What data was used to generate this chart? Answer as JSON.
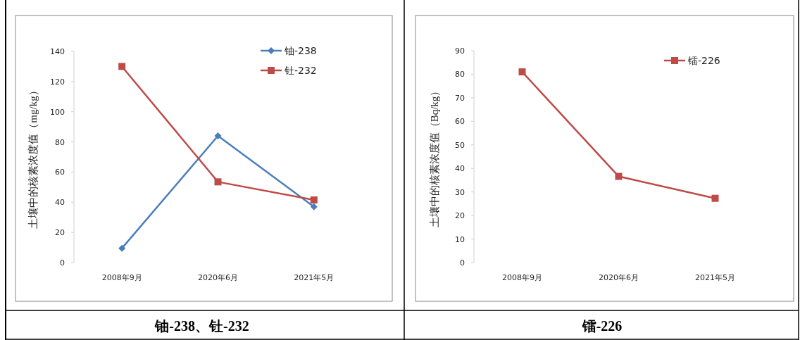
{
  "chart_data": [
    {
      "type": "line",
      "title": "铀-238、钍-232",
      "ylabel": "土壤中的核素浓度值（mg/kg）",
      "categories": [
        "2008年9月",
        "2020年6月",
        "2021年5月"
      ],
      "series": [
        {
          "name": "铀-238",
          "color": "#4a7ebb",
          "marker": "diamond",
          "values": [
            9.5,
            84,
            37
          ]
        },
        {
          "name": "钍-232",
          "color": "#be4b48",
          "marker": "square",
          "values": [
            130,
            53.5,
            41.5
          ]
        }
      ],
      "ylim": [
        0,
        140
      ],
      "yticks": [
        0,
        20,
        40,
        60,
        80,
        100,
        120,
        140
      ],
      "grid": false,
      "legend": "top right",
      "line_style": "solid"
    },
    {
      "type": "line",
      "title": "镭-226",
      "ylabel": "土壤中的核素浓度值（Bq/kg）",
      "categories": [
        "2008年9月",
        "2020年6月",
        "2021年5月"
      ],
      "series": [
        {
          "name": "镭-226",
          "color": "#be4b48",
          "marker": "square",
          "values": [
            81,
            36.6,
            27.3
          ]
        }
      ],
      "ylim": [
        0,
        90
      ],
      "yticks": [
        0,
        10,
        20,
        30,
        40,
        50,
        60,
        70,
        80,
        90
      ],
      "grid": false,
      "legend": "top right",
      "line_style": "solid"
    }
  ]
}
